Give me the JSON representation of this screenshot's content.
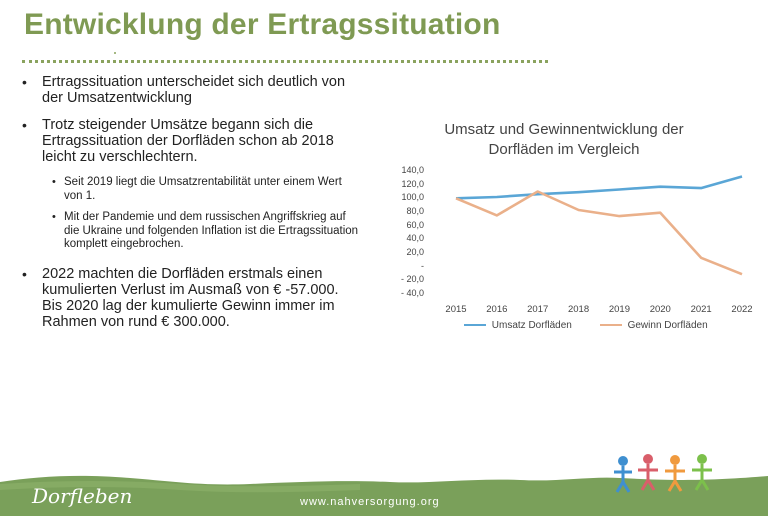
{
  "slide": {
    "title": "Entwicklung der Ertragssituation",
    "bullets": [
      {
        "text": "Ertragssituation unterscheidet sich deutlich von der Umsatzentwicklung"
      },
      {
        "text": "Trotz steigender Umsätze begann sich die Ertragssituation der Dorfläden schon ab 2018 leicht zu verschlechtern."
      },
      {
        "text": "Seit 2019 liegt die Umsatzrentabilität unter einem Wert von 1."
      },
      {
        "text": "Mit der Pandemie und dem russischen Angriffskrieg auf die Ukraine und folgenden Inflation ist die Ertragssituation komplett eingebrochen."
      },
      {
        "text": "2022 machten die Dorfläden erstmals einen kumulierten Verlust im Ausmaß von € -57.000. Bis 2020 lag der kumulierte Gewinn immer im Rahmen von rund € 300.000."
      }
    ]
  },
  "footer": {
    "logo": "Dorfleben",
    "url": "www.nahversorgung.org"
  },
  "colors": {
    "title": "#7f9a53",
    "umsatz": "#5aa6d6",
    "gewinn": "#eab08a",
    "grass": "#7aa05a"
  },
  "chart_data": {
    "type": "line",
    "title": "Umsatz und Gewinnentwicklung der\nDorfläden im Vergleich",
    "x": [
      "2015",
      "2016",
      "2017",
      "2018",
      "2019",
      "2020",
      "2021",
      "2022"
    ],
    "y_ticks": [
      "140,0",
      "120,0",
      "100,0",
      "80,0",
      "60,0",
      "40,0",
      "20,0",
      "-",
      "- 20,0",
      "- 40,0"
    ],
    "ylim": [
      -40,
      140
    ],
    "series": [
      {
        "name": "Umsatz Dorfläden",
        "values": [
          100,
          102,
          106,
          109,
          113,
          117,
          115,
          132
        ]
      },
      {
        "name": "Gewinn Dorfläden",
        "values": [
          100,
          75,
          110,
          83,
          74,
          79,
          13,
          -11
        ]
      }
    ],
    "legend": "bottom",
    "grid": false
  }
}
